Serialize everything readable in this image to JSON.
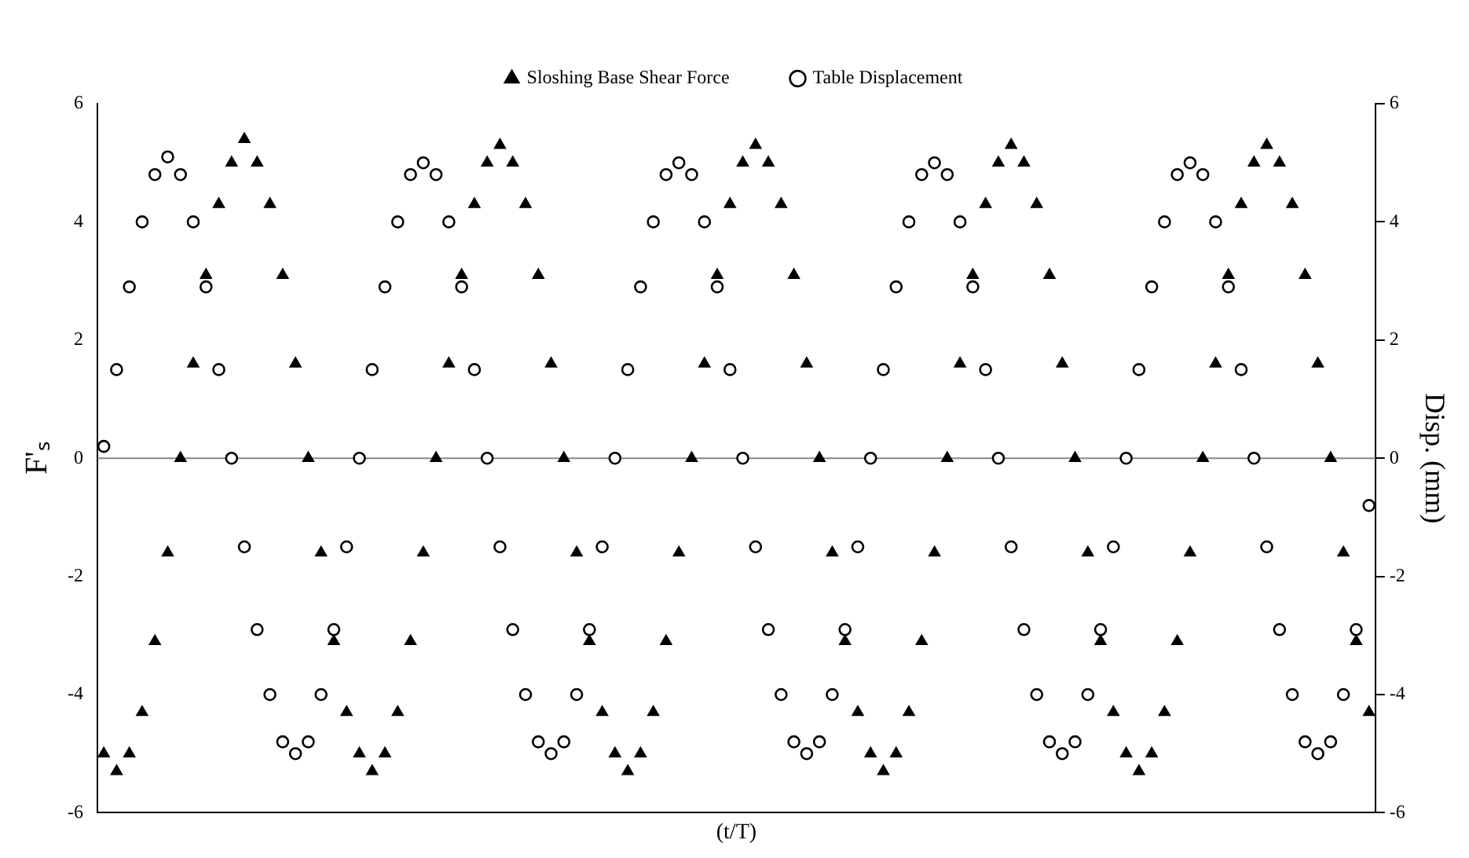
{
  "chart_data": {
    "type": "scatter",
    "xlabel": "(t/T)",
    "ylabel": "F'ₛ",
    "y2label": "Disp. (mm)",
    "categories": [
      null,
      null,
      null,
      null,
      null,
      null,
      null,
      null,
      null,
      null,
      null,
      null,
      null,
      null,
      null,
      null,
      null,
      null,
      null,
      null,
      null,
      null,
      null,
      null,
      null,
      null,
      null,
      null,
      null,
      null,
      null,
      null,
      null,
      null,
      null,
      null,
      null,
      null,
      null,
      null,
      null,
      null,
      null,
      null,
      null,
      null,
      null,
      null,
      null,
      null,
      null,
      null,
      null,
      null,
      null,
      null,
      null,
      null,
      null,
      null,
      null,
      null,
      null,
      null,
      null,
      null,
      null,
      null,
      null,
      null,
      null,
      null,
      null,
      null,
      null,
      null,
      null,
      null,
      null,
      null,
      null,
      null,
      null,
      null,
      null,
      null,
      null,
      null,
      null,
      null,
      null,
      null,
      null,
      null,
      null,
      null,
      null,
      null,
      null,
      null
    ],
    "series": [
      {
        "name": "Sloshing Base Shear Force",
        "color": "#000000",
        "marker": "triangle",
        "values": [
          -5.0,
          -5.3,
          -5.0,
          -4.3,
          -3.1,
          -1.6,
          0,
          1.6,
          3.1,
          4.3,
          5.0,
          5.4,
          5.0,
          4.3,
          3.1,
          1.6,
          0,
          -1.6,
          -3.1,
          -4.3,
          -5.0,
          -5.3,
          -5.0,
          -4.3,
          -3.1,
          -1.6,
          0,
          1.6,
          3.1,
          4.3,
          5.0,
          5.3,
          5.0,
          4.3,
          3.1,
          1.6,
          0,
          -1.6,
          -3.1,
          -4.3,
          -5.0,
          -5.3,
          -5.0,
          -4.3,
          -3.1,
          -1.6,
          0,
          1.6,
          3.1,
          4.3,
          5.0,
          5.3,
          5.0,
          4.3,
          3.1,
          1.6,
          0,
          -1.6,
          -3.1,
          -4.3,
          -5.0,
          -5.3,
          -5.0,
          -4.3,
          -3.1,
          -1.6,
          0,
          1.6,
          3.1,
          4.3,
          5.0,
          5.3,
          5.0,
          4.3,
          3.1,
          1.6,
          0,
          -1.6,
          -3.1,
          -4.3,
          -5.0,
          -5.3,
          -5.0,
          -4.3,
          -3.1,
          -1.6,
          0,
          1.6,
          3.1,
          4.3,
          5.0,
          5.3,
          5.0,
          4.3,
          3.1,
          1.6,
          0,
          -1.6,
          -3.1,
          -4.3
        ]
      },
      {
        "name": "Table Displacement",
        "color": "#000000",
        "marker": "circle",
        "axis": "y2",
        "values": [
          0.2,
          1.5,
          2.9,
          4.0,
          4.8,
          5.1,
          4.8,
          4.0,
          2.9,
          1.5,
          0,
          -1.5,
          -2.9,
          -4.0,
          -4.8,
          -5.0,
          -4.8,
          -4.0,
          -2.9,
          -1.5,
          0,
          1.5,
          2.9,
          4.0,
          4.8,
          5.0,
          4.8,
          4.0,
          2.9,
          1.5,
          0,
          -1.5,
          -2.9,
          -4.0,
          -4.8,
          -5.0,
          -4.8,
          -4.0,
          -2.9,
          -1.5,
          0,
          1.5,
          2.9,
          4.0,
          4.8,
          5.0,
          4.8,
          4.0,
          2.9,
          1.5,
          0,
          -1.5,
          -2.9,
          -4.0,
          -4.8,
          -5.0,
          -4.8,
          -4.0,
          -2.9,
          -1.5,
          0,
          1.5,
          2.9,
          4.0,
          4.8,
          5.0,
          4.8,
          4.0,
          2.9,
          1.5,
          0,
          -1.5,
          -2.9,
          -4.0,
          -4.8,
          -5.0,
          -4.8,
          -4.0,
          -2.9,
          -1.5,
          0,
          1.5,
          2.9,
          4.0,
          4.8,
          5.0,
          4.8,
          4.0,
          2.9,
          1.5,
          0,
          -1.5,
          -2.9,
          -4.0,
          -4.8,
          -5.0,
          -4.8,
          -4.0,
          -2.9,
          -0.8
        ]
      }
    ],
    "ylim": [
      -6,
      6
    ],
    "yticks": [
      -6,
      -4,
      -2,
      0,
      2,
      4,
      6
    ],
    "y2lim": [
      -6,
      6
    ],
    "y2ticks": [
      -6,
      -4,
      -2,
      0,
      2,
      4,
      6
    ],
    "ref_lines": [
      {
        "axis": "y",
        "value": 0,
        "color": "#888888"
      }
    ],
    "legend": "top",
    "grid": false,
    "tick_labels": "y"
  }
}
